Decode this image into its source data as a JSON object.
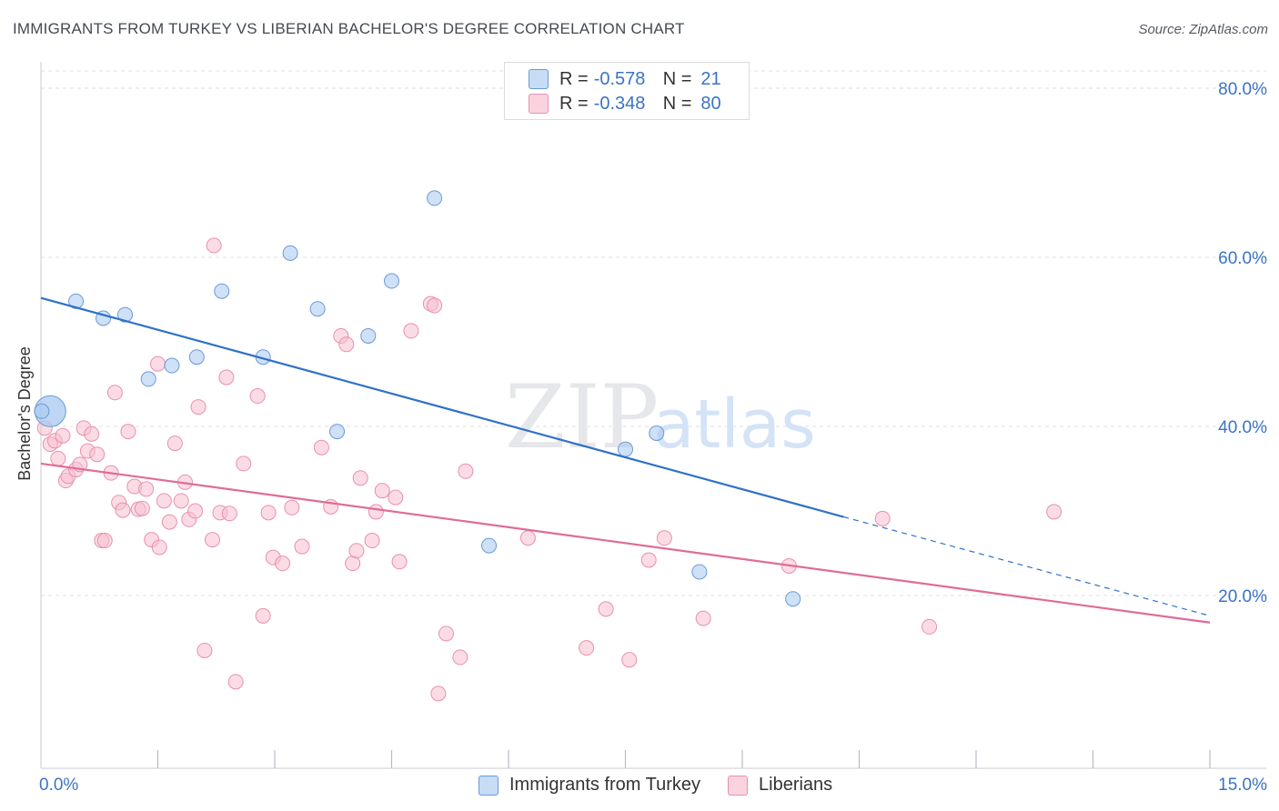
{
  "title": "IMMIGRANTS FROM TURKEY VS LIBERIAN BACHELOR'S DEGREE CORRELATION CHART",
  "source": "Source: ZipAtlas.com",
  "watermark": {
    "zip": "ZIP",
    "atlas": "atlas"
  },
  "legend": {
    "rows": [
      {
        "r_label": "R =",
        "r_value": "-0.578",
        "n_label": "N =",
        "n_value": "21",
        "color": "#a8c8f0",
        "border": "#6a9ad8"
      },
      {
        "r_label": "R =",
        "r_value": "-0.348",
        "n_label": "N =",
        "n_value": "80",
        "color": "#f8bfd0",
        "border": "#e890ae"
      }
    ]
  },
  "bottom_legend": [
    {
      "label": "Immigrants from Turkey",
      "color": "#a8c8f0",
      "border": "#6a9ad8"
    },
    {
      "label": "Liberians",
      "color": "#f8bfd0",
      "border": "#e890ae"
    }
  ],
  "chart_data": {
    "type": "scatter",
    "title": "IMMIGRANTS FROM TURKEY VS LIBERIAN BACHELOR'S DEGREE CORRELATION CHART",
    "xlabel": "",
    "ylabel": "Bachelor's Degree",
    "xlim": [
      0,
      15
    ],
    "ylim": [
      0,
      82
    ],
    "x_tick_labels": [
      "0.0%",
      "15.0%"
    ],
    "y_ticks": [
      20,
      40,
      60,
      80
    ],
    "y_tick_labels": [
      "20.0%",
      "40.0%",
      "60.0%",
      "80.0%"
    ],
    "grid": true,
    "legend_position": "top-center",
    "series": [
      {
        "name": "Immigrants from Turkey",
        "color": "#a8c8f0",
        "stroke": "#6a9ad8",
        "line_color": "#2f72c8",
        "trend": {
          "x0": 0,
          "y0": 55.2,
          "x1": 10.3,
          "y1": 29.3,
          "dash_to_x": 15,
          "dash_to_y": 17.6
        },
        "points": [
          [
            0.12,
            41.8,
            "big"
          ],
          [
            0.45,
            54.8
          ],
          [
            0.8,
            52.8
          ],
          [
            1.08,
            53.2
          ],
          [
            1.38,
            45.6
          ],
          [
            1.68,
            47.2
          ],
          [
            2.0,
            48.2
          ],
          [
            2.32,
            56.0
          ],
          [
            2.85,
            48.2
          ],
          [
            3.2,
            60.5
          ],
          [
            3.55,
            53.9
          ],
          [
            3.8,
            39.4
          ],
          [
            4.2,
            50.7
          ],
          [
            4.5,
            57.2
          ],
          [
            5.05,
            67.0
          ],
          [
            5.75,
            25.9
          ],
          [
            7.5,
            37.3
          ],
          [
            7.9,
            39.2
          ],
          [
            8.45,
            22.8
          ],
          [
            9.65,
            19.6
          ],
          [
            0.01,
            41.8
          ]
        ]
      },
      {
        "name": "Liberians",
        "color": "#f8bfd0",
        "stroke": "#e890ae",
        "line_color": "#e06b98",
        "trend": {
          "x0": 0,
          "y0": 35.6,
          "x1": 15,
          "y1": 16.8
        },
        "points": [
          [
            0.05,
            39.8
          ],
          [
            0.12,
            37.9
          ],
          [
            0.18,
            38.3
          ],
          [
            0.22,
            36.2
          ],
          [
            0.28,
            38.9
          ],
          [
            0.32,
            33.6
          ],
          [
            0.35,
            34.1
          ],
          [
            0.45,
            34.9
          ],
          [
            0.5,
            35.5
          ],
          [
            0.55,
            39.8
          ],
          [
            0.6,
            37.1
          ],
          [
            0.65,
            39.1
          ],
          [
            0.72,
            36.7
          ],
          [
            0.78,
            26.5
          ],
          [
            0.82,
            26.5
          ],
          [
            0.9,
            34.5
          ],
          [
            0.95,
            44.0
          ],
          [
            1.0,
            31.0
          ],
          [
            1.05,
            30.1
          ],
          [
            1.12,
            39.4
          ],
          [
            1.2,
            32.9
          ],
          [
            1.25,
            30.2
          ],
          [
            1.3,
            30.3
          ],
          [
            1.35,
            32.6
          ],
          [
            1.42,
            26.6
          ],
          [
            1.5,
            47.4
          ],
          [
            1.52,
            25.7
          ],
          [
            1.58,
            31.2
          ],
          [
            1.65,
            28.7
          ],
          [
            1.72,
            38.0
          ],
          [
            1.8,
            31.2
          ],
          [
            1.85,
            33.4
          ],
          [
            1.9,
            29.0
          ],
          [
            1.98,
            30.0
          ],
          [
            2.02,
            42.3
          ],
          [
            2.1,
            13.5
          ],
          [
            2.2,
            26.6
          ],
          [
            2.22,
            61.4
          ],
          [
            2.3,
            29.8
          ],
          [
            2.38,
            45.8
          ],
          [
            2.42,
            29.7
          ],
          [
            2.5,
            9.8
          ],
          [
            2.6,
            35.6
          ],
          [
            2.78,
            43.6
          ],
          [
            2.85,
            17.6
          ],
          [
            2.92,
            29.8
          ],
          [
            2.98,
            24.5
          ],
          [
            3.1,
            23.8
          ],
          [
            3.22,
            30.4
          ],
          [
            3.35,
            25.8
          ],
          [
            3.6,
            37.5
          ],
          [
            3.72,
            30.5
          ],
          [
            3.85,
            50.7
          ],
          [
            3.92,
            49.7
          ],
          [
            4.0,
            23.8
          ],
          [
            4.05,
            25.3
          ],
          [
            4.1,
            33.9
          ],
          [
            4.25,
            26.5
          ],
          [
            4.3,
            29.9
          ],
          [
            4.38,
            32.4
          ],
          [
            4.55,
            31.6
          ],
          [
            4.6,
            24.0
          ],
          [
            4.75,
            51.3
          ],
          [
            5.0,
            54.5
          ],
          [
            5.05,
            54.3
          ],
          [
            5.1,
            8.4
          ],
          [
            5.2,
            15.5
          ],
          [
            5.45,
            34.7
          ],
          [
            5.38,
            12.7
          ],
          [
            6.25,
            26.8
          ],
          [
            7.0,
            13.8
          ],
          [
            7.25,
            18.4
          ],
          [
            7.55,
            12.4
          ],
          [
            7.8,
            24.2
          ],
          [
            8.0,
            26.8
          ],
          [
            8.5,
            17.3
          ],
          [
            9.6,
            23.5
          ],
          [
            10.8,
            29.1
          ],
          [
            11.4,
            16.3
          ],
          [
            13.0,
            29.9
          ]
        ]
      }
    ]
  }
}
